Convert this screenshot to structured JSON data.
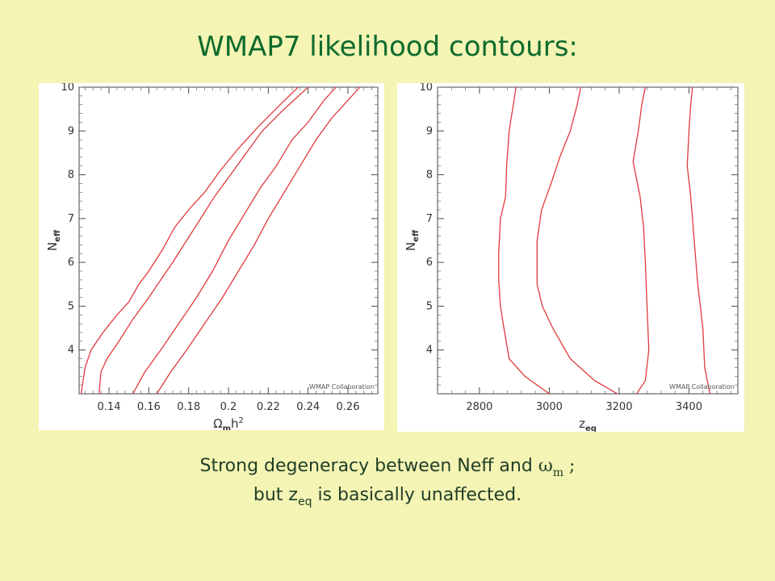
{
  "slide": {
    "title": "WMAP7 likelihood contours:",
    "caption_line1_text": "Strong degeneracy between Neff and ",
    "caption_line1_symbol": "ω",
    "caption_line1_symbol_sub": "m",
    "caption_line1_tail": " ;",
    "caption_line2_prefix": "but z",
    "caption_line2_sub": "eq",
    "caption_line2_suffix": " is basically unaffected."
  },
  "colors": {
    "contour": "#e0393e",
    "title": "#0e6b2d",
    "background": "#f4f4b4"
  },
  "chart_data": [
    {
      "type": "line",
      "xlabel_main": "Ω",
      "xlabel_sub1": "m",
      "xlabel_mid": "h",
      "xlabel_sup": "2",
      "ylabel_main": "N",
      "ylabel_sub": "eff",
      "watermark": "WMAP Collaboration",
      "xlim": [
        0.125,
        0.275
      ],
      "ylim": [
        3,
        10
      ],
      "xticks": [
        "0.14",
        "0.16",
        "0.18",
        "0.2",
        "0.22",
        "0.24",
        "0.26"
      ],
      "xtick_values": [
        0.14,
        0.16,
        0.18,
        0.2,
        0.22,
        0.24,
        0.26
      ],
      "yticks": [
        "4",
        "5",
        "6",
        "7",
        "8",
        "9",
        "10"
      ],
      "ytick_values": [
        4,
        5,
        6,
        7,
        8,
        9,
        10
      ],
      "series": [
        {
          "points": [
            [
              0.126,
              3.0
            ],
            [
              0.128,
              3.6
            ],
            [
              0.131,
              4.0
            ],
            [
              0.137,
              4.4
            ],
            [
              0.144,
              4.8
            ],
            [
              0.15,
              5.1
            ],
            [
              0.155,
              5.5
            ],
            [
              0.16,
              5.8
            ],
            [
              0.167,
              6.3
            ],
            [
              0.173,
              6.8
            ],
            [
              0.18,
              7.2
            ],
            [
              0.188,
              7.6
            ],
            [
              0.196,
              8.1
            ],
            [
              0.205,
              8.6
            ],
            [
              0.215,
              9.1
            ],
            [
              0.226,
              9.6
            ],
            [
              0.235,
              10.0
            ]
          ]
        },
        {
          "points": [
            [
              0.135,
              3.0
            ],
            [
              0.136,
              3.5
            ],
            [
              0.139,
              3.8
            ],
            [
              0.145,
              4.2
            ],
            [
              0.152,
              4.7
            ],
            [
              0.16,
              5.2
            ],
            [
              0.166,
              5.6
            ],
            [
              0.172,
              6.0
            ],
            [
              0.179,
              6.5
            ],
            [
              0.186,
              7.0
            ],
            [
              0.193,
              7.5
            ],
            [
              0.201,
              8.0
            ],
            [
              0.209,
              8.5
            ],
            [
              0.217,
              9.0
            ],
            [
              0.228,
              9.5
            ],
            [
              0.24,
              10.0
            ]
          ]
        },
        {
          "points": [
            [
              0.152,
              3.0
            ],
            [
              0.158,
              3.5
            ],
            [
              0.166,
              4.0
            ],
            [
              0.175,
              4.6
            ],
            [
              0.184,
              5.2
            ],
            [
              0.192,
              5.8
            ],
            [
              0.2,
              6.5
            ],
            [
              0.208,
              7.1
            ],
            [
              0.216,
              7.7
            ],
            [
              0.224,
              8.2
            ],
            [
              0.232,
              8.8
            ],
            [
              0.24,
              9.2
            ],
            [
              0.248,
              9.7
            ],
            [
              0.254,
              10.0
            ]
          ]
        },
        {
          "points": [
            [
              0.164,
              3.0
            ],
            [
              0.171,
              3.5
            ],
            [
              0.179,
              4.0
            ],
            [
              0.188,
              4.6
            ],
            [
              0.197,
              5.2
            ],
            [
              0.205,
              5.8
            ],
            [
              0.213,
              6.4
            ],
            [
              0.22,
              7.0
            ],
            [
              0.228,
              7.6
            ],
            [
              0.236,
              8.2
            ],
            [
              0.244,
              8.8
            ],
            [
              0.252,
              9.3
            ],
            [
              0.26,
              9.7
            ],
            [
              0.266,
              10.0
            ]
          ]
        }
      ]
    },
    {
      "type": "line",
      "xlabel_main": "z",
      "xlabel_sub1": "eq",
      "ylabel_main": "N",
      "ylabel_sub": "eff",
      "watermark": "WMAP Collaboration",
      "xlim": [
        2680,
        3540
      ],
      "ylim": [
        3,
        10
      ],
      "xticks": [
        "2800",
        "3000",
        "3200",
        "3400"
      ],
      "xtick_values": [
        2800,
        3000,
        3200,
        3400
      ],
      "yticks": [
        "4",
        "5",
        "6",
        "7",
        "8",
        "9",
        "10"
      ],
      "ytick_values": [
        4,
        5,
        6,
        7,
        8,
        9,
        10
      ],
      "series": [
        {
          "points": [
            [
              3000,
              3.0
            ],
            [
              2930,
              3.4
            ],
            [
              2885,
              3.8
            ],
            [
              2870,
              4.5
            ],
            [
              2860,
              5.0
            ],
            [
              2855,
              5.6
            ],
            [
              2855,
              6.2
            ],
            [
              2860,
              7.0
            ],
            [
              2875,
              7.5
            ],
            [
              2878,
              8.2
            ],
            [
              2885,
              9.0
            ],
            [
              2895,
              9.5
            ],
            [
              2905,
              10.0
            ]
          ]
        },
        {
          "points": [
            [
              3195,
              3.0
            ],
            [
              3130,
              3.3
            ],
            [
              3060,
              3.8
            ],
            [
              3010,
              4.5
            ],
            [
              2980,
              5.0
            ],
            [
              2965,
              5.5
            ],
            [
              2965,
              6.5
            ],
            [
              2978,
              7.2
            ],
            [
              3005,
              7.8
            ],
            [
              3030,
              8.4
            ],
            [
              3060,
              9.0
            ],
            [
              3080,
              9.6
            ],
            [
              3090,
              10.0
            ]
          ]
        },
        {
          "points": [
            [
              3250,
              3.0
            ],
            [
              3275,
              3.3
            ],
            [
              3285,
              4.0
            ],
            [
              3280,
              5.0
            ],
            [
              3275,
              6.0
            ],
            [
              3270,
              6.8
            ],
            [
              3260,
              7.5
            ],
            [
              3240,
              8.3
            ],
            [
              3255,
              9.0
            ],
            [
              3265,
              9.6
            ],
            [
              3275,
              10.0
            ]
          ]
        },
        {
          "points": [
            [
              3460,
              3.0
            ],
            [
              3445,
              3.6
            ],
            [
              3440,
              4.5
            ],
            [
              3425,
              5.5
            ],
            [
              3415,
              6.5
            ],
            [
              3405,
              7.5
            ],
            [
              3395,
              8.2
            ],
            [
              3400,
              9.0
            ],
            [
              3405,
              9.6
            ],
            [
              3410,
              10.0
            ]
          ]
        }
      ]
    }
  ]
}
